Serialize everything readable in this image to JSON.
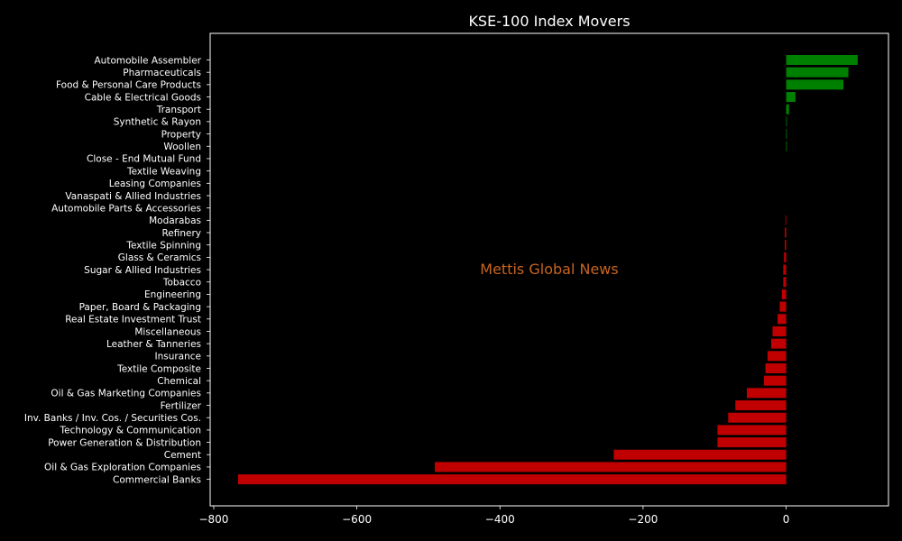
{
  "chart_data": {
    "type": "bar",
    "orientation": "horizontal",
    "title": "KSE-100 Index Movers",
    "watermark": "Mettis Global News",
    "xlabel": "",
    "ylabel": "",
    "xlim": [
      -805,
      143
    ],
    "xticks": [
      -800,
      -600,
      -400,
      -200,
      0
    ],
    "xtick_labels": [
      "−800",
      "−600",
      "−400",
      "−200",
      "0"
    ],
    "grid": false,
    "legend": "none",
    "colors": {
      "positive": "#008000",
      "negative": "#c00000",
      "background": "#000000",
      "axis": "#ffffff",
      "watermark": "#c8641e"
    },
    "categories": [
      "Automobile Assembler",
      "Pharmaceuticals",
      "Food & Personal Care Products",
      "Cable & Electrical Goods",
      "Transport",
      "Synthetic & Rayon",
      "Property",
      "Woollen",
      "Close - End Mutual Fund",
      "Textile Weaving",
      "Leasing Companies",
      "Vanaspati & Allied Industries",
      "Automobile Parts & Accessories",
      "Modarabas",
      "Refinery",
      "Textile Spinning",
      "Glass & Ceramics",
      "Sugar & Allied Industries",
      "Tobacco",
      "Engineering",
      "Paper, Board & Packaging",
      "Real Estate Investment Trust",
      "Miscellaneous",
      "Leather & Tanneries",
      "Insurance",
      "Textile Composite",
      "Chemical",
      "Oil & Gas Marketing Companies",
      "Fertilizer",
      "Inv. Banks / Inv. Cos. / Securities Cos.",
      "Technology & Communication",
      "Power Generation & Distribution",
      "Cement",
      "Oil & Gas Exploration Companies",
      "Commercial Banks"
    ],
    "values": [
      100,
      87,
      80,
      13,
      4,
      1,
      1,
      1,
      0,
      0,
      0,
      0,
      0,
      -1,
      -2,
      -2,
      -3,
      -4,
      -4,
      -6,
      -9,
      -12,
      -19,
      -21,
      -26,
      -29,
      -31,
      -55,
      -71,
      -81,
      -96,
      -96,
      -241,
      -491,
      -766
    ]
  }
}
